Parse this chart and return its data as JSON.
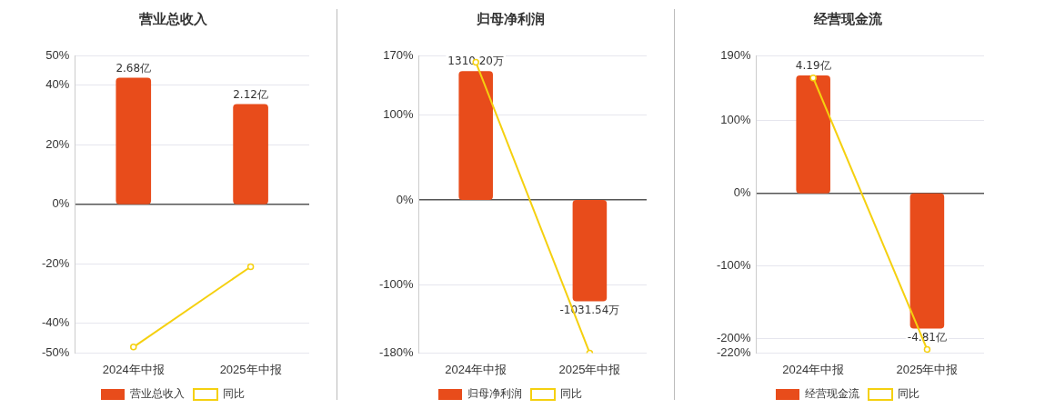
{
  "chart_data": [
    {
      "type": "bar",
      "title": "营业总收入",
      "categories": [
        "2024年中报",
        "2025年中报"
      ],
      "ylim": [
        -50,
        50
      ],
      "yticks": [
        {
          "value": 50,
          "label": "50%"
        },
        {
          "value": 40,
          "label": "40%"
        },
        {
          "value": 20,
          "label": "20%"
        },
        {
          "value": 0,
          "label": "0%"
        },
        {
          "value": -20,
          "label": "-20%"
        },
        {
          "value": -40,
          "label": "-40%"
        },
        {
          "value": -50,
          "label": "-50%"
        }
      ],
      "y2lim": [
        -3.15,
        3.15
      ],
      "grid": "y",
      "legend": "bottom",
      "marker": "circle",
      "tick_labels": "xy",
      "series": [
        {
          "name": "营业总收入",
          "axis": "y2",
          "color": "#e84c1b",
          "values": [
            2.68,
            2.12
          ],
          "value_labels": [
            "2.68亿",
            "2.12亿"
          ]
        },
        {
          "name": "同比",
          "type": "line",
          "color": "#f5d00f",
          "values": [
            -48,
            -21
          ]
        }
      ]
    },
    {
      "type": "bar",
      "title": "归母净利润",
      "categories": [
        "2024年中报",
        "2025年中报"
      ],
      "ylim": [
        -180,
        170
      ],
      "yticks": [
        {
          "value": 170,
          "label": "170%"
        },
        {
          "value": 100,
          "label": "100%"
        },
        {
          "value": 0,
          "label": "0%"
        },
        {
          "value": -100,
          "label": "-100%"
        },
        {
          "value": -180,
          "label": "-180%"
        }
      ],
      "y2lim": [
        -1557,
        1470
      ],
      "grid": "y",
      "legend": "bottom",
      "marker": "circle",
      "tick_labels": "xy",
      "series": [
        {
          "name": "归母净利润",
          "axis": "y2",
          "color": "#e84c1b",
          "values": [
            1310.2,
            -1031.54
          ],
          "value_labels": [
            "1310.20万",
            "-1031.54万"
          ]
        },
        {
          "name": "同比",
          "type": "line",
          "color": "#f5d00f",
          "values": [
            162,
            -180
          ]
        }
      ]
    },
    {
      "type": "bar",
      "title": "经营现金流",
      "categories": [
        "2024年中报",
        "2025年中报"
      ],
      "ylim": [
        -220,
        190
      ],
      "yticks": [
        {
          "value": 190,
          "label": "190%"
        },
        {
          "value": 100,
          "label": "100%"
        },
        {
          "value": 0,
          "label": "0%"
        },
        {
          "value": -100,
          "label": "-100%"
        },
        {
          "value": -200,
          "label": "-200%"
        },
        {
          "value": -220,
          "label": "-220%"
        }
      ],
      "y2lim": [
        -5.68,
        4.9
      ],
      "grid": "y",
      "legend": "bottom",
      "marker": "circle",
      "tick_labels": "xy",
      "series": [
        {
          "name": "经营现金流",
          "axis": "y2",
          "color": "#e84c1b",
          "values": [
            4.19,
            -4.81
          ],
          "value_labels": [
            "4.19亿",
            "-4.81亿"
          ]
        },
        {
          "name": "同比",
          "type": "line",
          "color": "#f5d00f",
          "values": [
            159,
            -215
          ]
        }
      ]
    }
  ]
}
